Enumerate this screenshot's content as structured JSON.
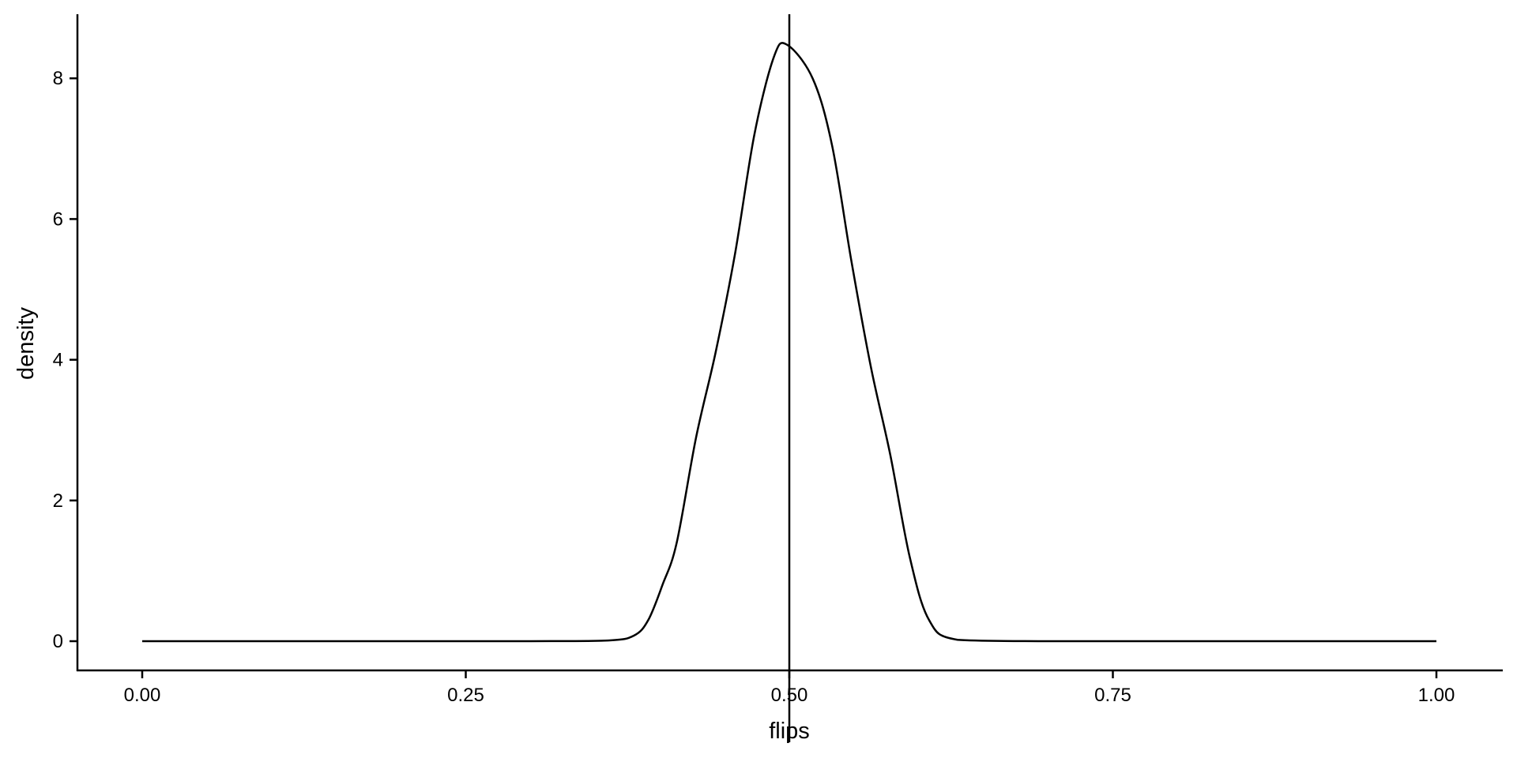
{
  "chart_data": {
    "type": "line",
    "title": "",
    "xlabel": "flips",
    "ylabel": "density",
    "xlim": [
      -0.05,
      1.05
    ],
    "ylim": [
      -0.4,
      8.9
    ],
    "x_ticks": [
      0,
      0.25,
      0.5,
      0.75,
      1
    ],
    "x_tick_labels": [
      "0.00",
      "0.25",
      "0.50",
      "0.75",
      "1.00"
    ],
    "y_ticks": [
      0,
      2,
      4,
      6,
      8
    ],
    "y_tick_labels": [
      "0",
      "2",
      "4",
      "6",
      "8"
    ],
    "grid": false,
    "vline_x": 0.5,
    "color": "#000000",
    "series": [
      {
        "x": [
          0,
          0.1,
          0.2,
          0.3,
          0.36,
          0.38,
          0.391,
          0.402,
          0.413,
          0.428,
          0.443,
          0.458,
          0.473,
          0.488,
          0.498,
          0.518,
          0.533,
          0.548,
          0.563,
          0.578,
          0.593,
          0.608,
          0.63,
          0.7,
          0.8,
          0.9,
          1
        ],
        "y": [
          0,
          0,
          0,
          0,
          0.01,
          0.08,
          0.3,
          0.8,
          1.4,
          2.9,
          4.1,
          5.5,
          7.2,
          8.3,
          8.48,
          8.0,
          7.05,
          5.4,
          3.9,
          2.65,
          1.2,
          0.3,
          0.02,
          0,
          0,
          0,
          0
        ]
      }
    ]
  }
}
